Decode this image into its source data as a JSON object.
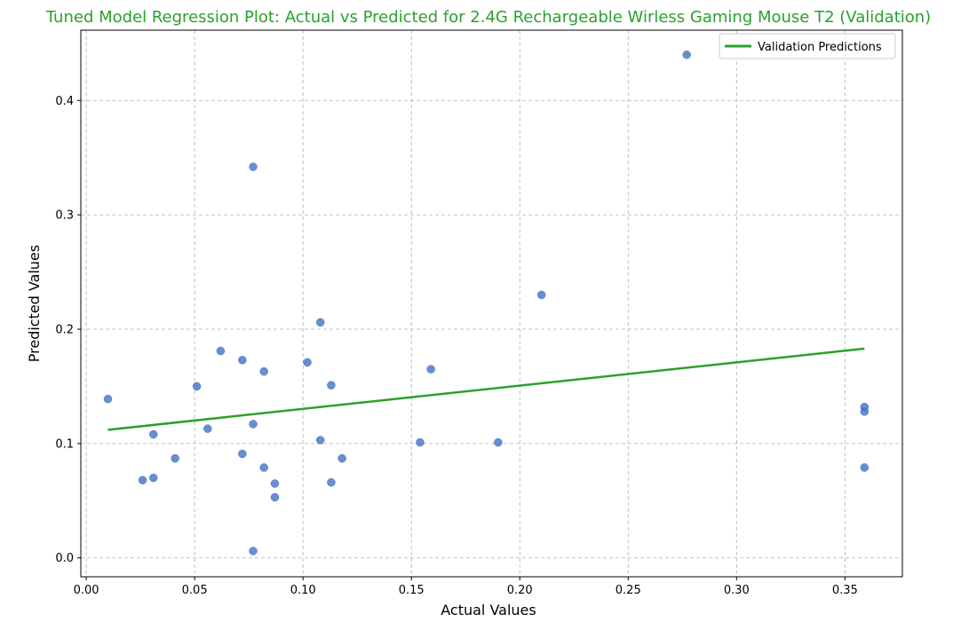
{
  "chart_data": {
    "type": "scatter",
    "title": "Tuned Model Regression Plot: Actual vs Predicted for 2.4G Rechargeable Wirless Gaming Mouse T2 (Validation)",
    "xlabel": "Actual Values",
    "ylabel": "Predicted Values",
    "xlim": [
      -0.0025,
      0.3765
    ],
    "ylim": [
      -0.0165,
      0.4615
    ],
    "xticks": [
      "0.00",
      "0.05",
      "0.10",
      "0.15",
      "0.20",
      "0.25",
      "0.30",
      "0.35"
    ],
    "xtick_values": [
      0.0,
      0.05,
      0.1,
      0.15,
      0.2,
      0.25,
      0.3,
      0.35
    ],
    "yticks": [
      "0.0",
      "0.1",
      "0.2",
      "0.3",
      "0.4"
    ],
    "ytick_values": [
      0.0,
      0.1,
      0.2,
      0.3,
      0.4
    ],
    "grid": true,
    "legend_position": "top-right",
    "points": {
      "color": "#4472c4",
      "x": [
        0.01,
        0.026,
        0.031,
        0.031,
        0.041,
        0.051,
        0.056,
        0.062,
        0.072,
        0.072,
        0.077,
        0.077,
        0.077,
        0.082,
        0.082,
        0.087,
        0.087,
        0.102,
        0.108,
        0.108,
        0.113,
        0.113,
        0.118,
        0.154,
        0.159,
        0.19,
        0.21,
        0.277,
        0.359,
        0.359,
        0.359
      ],
      "y": [
        0.139,
        0.068,
        0.07,
        0.108,
        0.087,
        0.15,
        0.113,
        0.181,
        0.173,
        0.091,
        0.342,
        0.117,
        0.006,
        0.163,
        0.079,
        0.065,
        0.053,
        0.171,
        0.206,
        0.103,
        0.151,
        0.066,
        0.087,
        0.101,
        0.165,
        0.101,
        0.23,
        0.44,
        0.132,
        0.128,
        0.079
      ]
    },
    "series": [
      {
        "name": "Validation Predictions",
        "color": "#2ca02c",
        "x": [
          0.01,
          0.359
        ],
        "y": [
          0.112,
          0.183
        ]
      }
    ]
  }
}
